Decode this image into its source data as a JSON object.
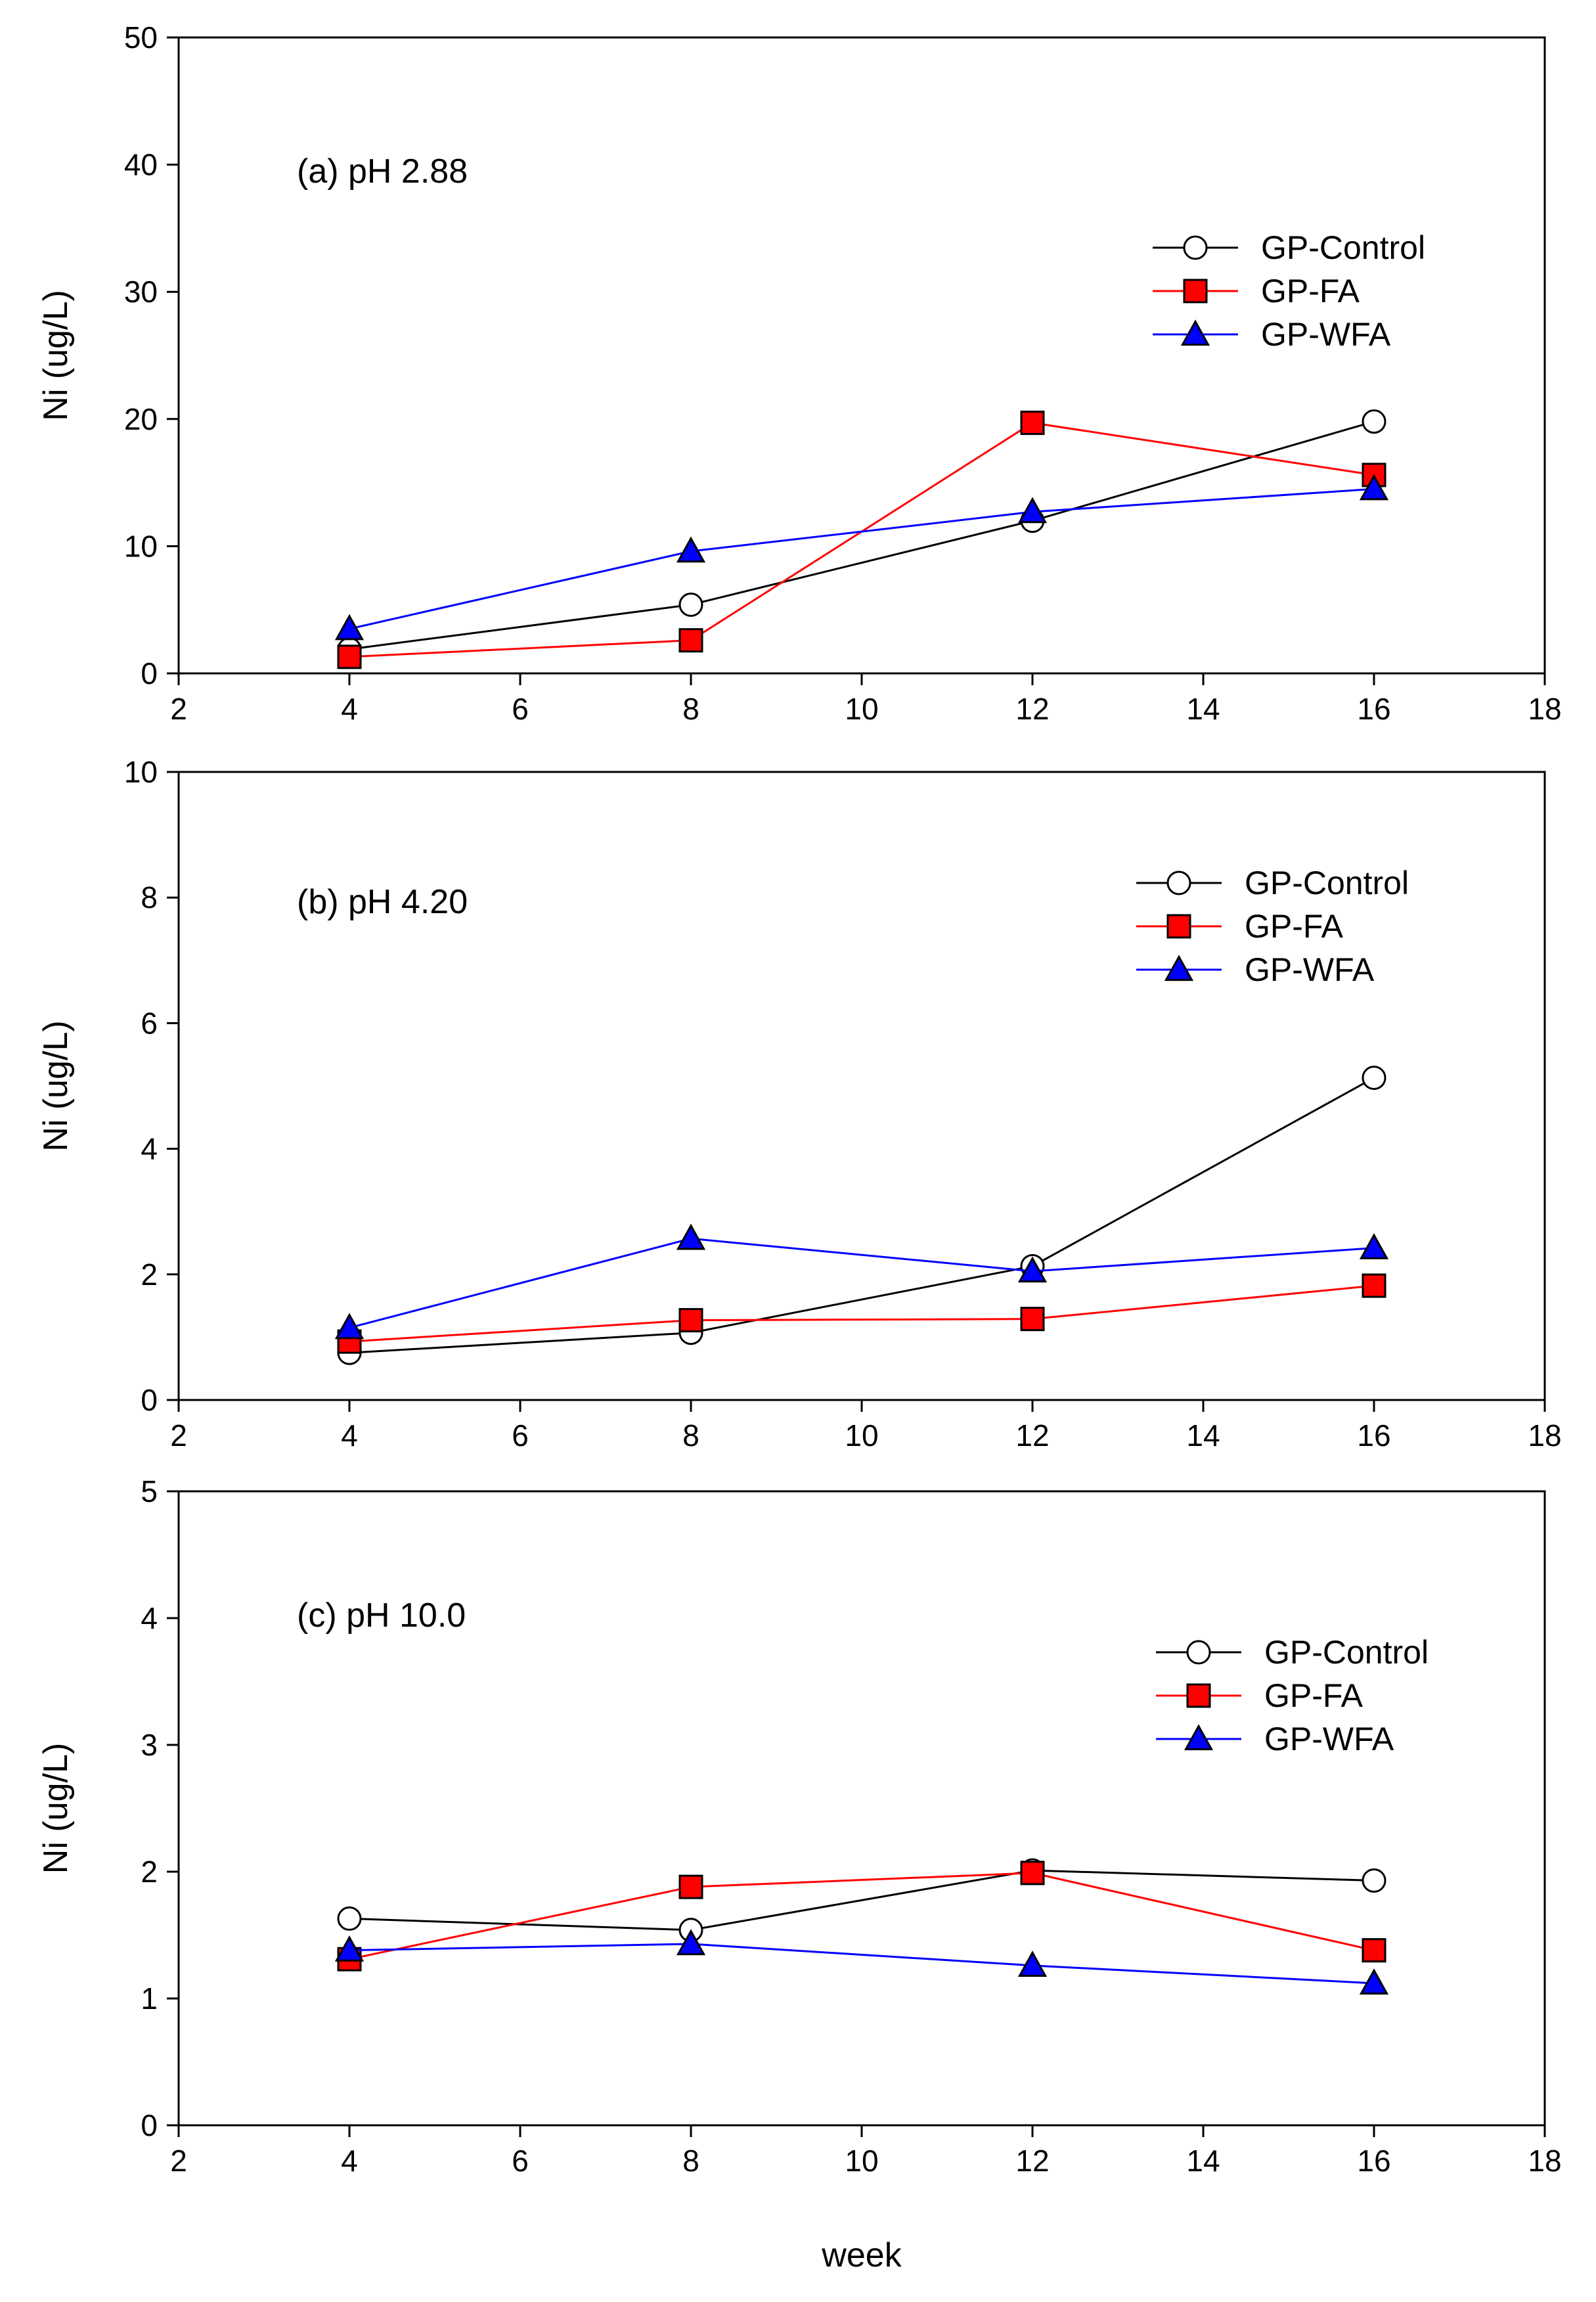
{
  "chart_data": [
    {
      "type": "line",
      "panel_label": "(a) pH 2.88",
      "xlabel": "",
      "ylabel": "Ni (ug/L)",
      "xlim": [
        2,
        18
      ],
      "ylim": [
        0,
        50
      ],
      "xticks": [
        2,
        4,
        6,
        8,
        10,
        12,
        14,
        16,
        18
      ],
      "yticks": [
        0,
        10,
        20,
        30,
        40,
        50
      ],
      "x": [
        4,
        8,
        12,
        16
      ],
      "legend_position": "upper-right",
      "series": [
        {
          "name": "GP-Control",
          "marker": "circle",
          "line_color": "#000000",
          "fill": "#ffffff",
          "values": [
            1.9,
            5.4,
            12.0,
            19.8
          ]
        },
        {
          "name": "GP-FA",
          "marker": "square",
          "line_color": "#ff0000",
          "fill": "#ff0000",
          "values": [
            1.3,
            2.6,
            19.7,
            15.6
          ]
        },
        {
          "name": "GP-WFA",
          "marker": "triangle",
          "line_color": "#0000ff",
          "fill": "#0000ff",
          "values": [
            3.5,
            9.6,
            12.7,
            14.5
          ]
        }
      ]
    },
    {
      "type": "line",
      "panel_label": "(b) pH 4.20",
      "xlabel": "",
      "ylabel": "Ni (ug/L)",
      "xlim": [
        2,
        18
      ],
      "ylim": [
        0,
        10
      ],
      "xticks": [
        2,
        4,
        6,
        8,
        10,
        12,
        14,
        16,
        18
      ],
      "yticks": [
        0,
        2,
        4,
        6,
        8,
        10
      ],
      "x": [
        4,
        8,
        12,
        16
      ],
      "legend_position": "upper-right",
      "series": [
        {
          "name": "GP-Control",
          "marker": "circle",
          "line_color": "#000000",
          "fill": "#ffffff",
          "values": [
            0.75,
            1.07,
            2.13,
            5.13
          ]
        },
        {
          "name": "GP-FA",
          "marker": "square",
          "line_color": "#ff0000",
          "fill": "#ff0000",
          "values": [
            0.93,
            1.27,
            1.29,
            1.82
          ]
        },
        {
          "name": "GP-WFA",
          "marker": "triangle",
          "line_color": "#0000ff",
          "fill": "#0000ff",
          "values": [
            1.15,
            2.57,
            2.05,
            2.42
          ]
        }
      ]
    },
    {
      "type": "line",
      "panel_label": "(c) pH 10.0",
      "xlabel": "week",
      "ylabel": "Ni (ug/L)",
      "xlim": [
        2,
        18
      ],
      "ylim": [
        0,
        5
      ],
      "xticks": [
        2,
        4,
        6,
        8,
        10,
        12,
        14,
        16,
        18
      ],
      "yticks": [
        0,
        1,
        2,
        3,
        4,
        5
      ],
      "x": [
        4,
        8,
        12,
        16
      ],
      "legend_position": "upper-right",
      "series": [
        {
          "name": "GP-Control",
          "marker": "circle",
          "line_color": "#000000",
          "fill": "#ffffff",
          "values": [
            1.63,
            1.54,
            2.01,
            1.93
          ]
        },
        {
          "name": "GP-FA",
          "marker": "square",
          "line_color": "#ff0000",
          "fill": "#ff0000",
          "values": [
            1.31,
            1.88,
            1.99,
            1.38
          ]
        },
        {
          "name": "GP-WFA",
          "marker": "triangle",
          "line_color": "#0000ff",
          "fill": "#0000ff",
          "values": [
            1.38,
            1.43,
            1.26,
            1.12
          ]
        }
      ]
    }
  ]
}
